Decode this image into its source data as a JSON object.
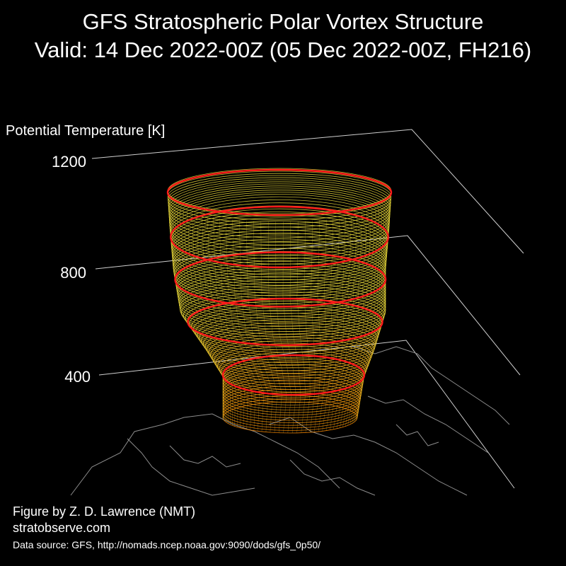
{
  "header": {
    "title": "GFS Stratospheric Polar Vortex Structure",
    "subtitle": "Valid: 14 Dec 2022-00Z  (05 Dec 2022-00Z, FH216)"
  },
  "footer": {
    "credit": "Figure by Z. D. Lawrence (NMT)",
    "website": "stratobserve.com",
    "source": "Data source: GFS, http://nomads.ncep.noaa.gov:9090/dods/gfs_0p50/"
  },
  "chart_data": {
    "type": "3d-isosurface",
    "zlabel": "Potential Temperature [K]",
    "zticks": [
      1200,
      800,
      400
    ],
    "zlim": [
      400,
      1200
    ],
    "grid": true,
    "background": "#000000",
    "colors": {
      "contour_highlight": "#ff1a1a",
      "upper_lines": "#e8d83a",
      "lower_lines": "#ff8a00",
      "axis_lines": "#cfcfcf",
      "coastlines": "#8c8c8c"
    }
  }
}
